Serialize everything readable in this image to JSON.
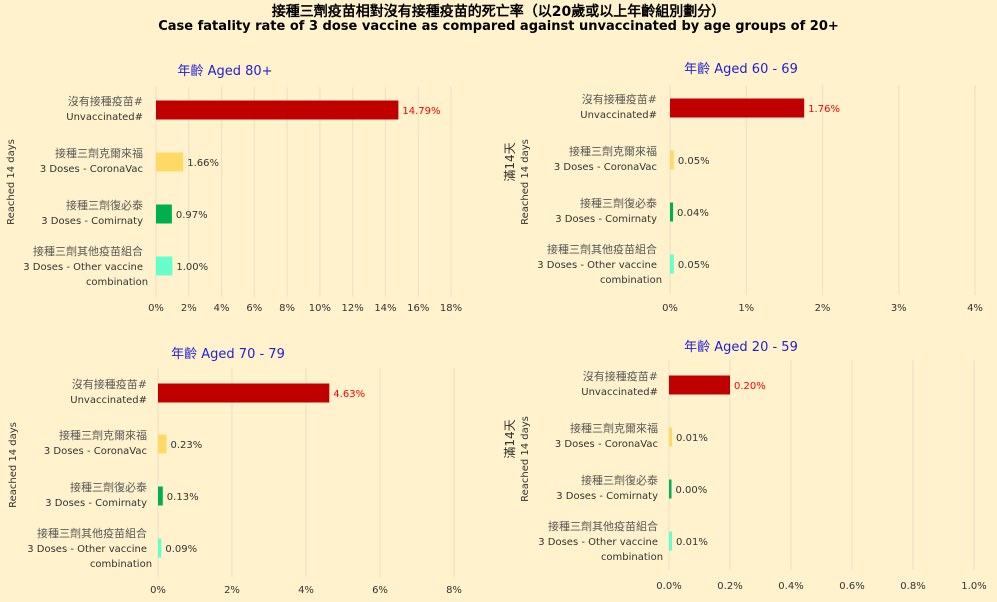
{
  "title": "接種三劑疫苗相對沒有接種疫苗的死亡率（以20歲或以上年齡組別劃分）",
  "subtitle": "Case fatality rate of 3 dose vaccine as compared against unvaccinated by age groups of 20+",
  "colors": {
    "background": "#fff2cc",
    "gridline": "#ede3c6",
    "panel_title": "#1f1fd6",
    "unvaccinated": "#c00000",
    "coronavac": "#ffd966",
    "comirnaty": "#00b050",
    "other": "#66ffcc",
    "label_text": "#333333",
    "unvaccinated_label": "#ff0000"
  },
  "chart_data": [
    {
      "type": "bar",
      "orientation": "horizontal",
      "title": "年齡 Aged 80+",
      "ylabel": "Reached 14 days",
      "categories": [
        {
          "zh": "沒有接種疫苗#",
          "en": "Unvaccinated#"
        },
        {
          "zh": "接種三劑克爾來福",
          "en": "3 Doses - CoronaVac"
        },
        {
          "zh": "接種三劑復必泰",
          "en": "3 Doses - Comirnaty"
        },
        {
          "zh": "接種三劑其他疫苗組合",
          "en": "3 Doses - Other vaccine",
          "en2": "combination"
        }
      ],
      "values": [
        14.79,
        1.66,
        0.97,
        1.0
      ],
      "value_labels": [
        "14.79%",
        "1.66%",
        "0.97%",
        "1.00%"
      ],
      "xlim": [
        0,
        18
      ],
      "xticks": [
        "0%",
        "2%",
        "4%",
        "6%",
        "8%",
        "10%",
        "12%",
        "14%",
        "16%",
        "18%"
      ],
      "grid": true
    },
    {
      "type": "bar",
      "orientation": "horizontal",
      "title": "年齡 Aged 60 - 69",
      "ylabel": "Reached 14 days",
      "ylabel_zh": "滿14天",
      "categories": [
        {
          "zh": "沒有接種疫苗#",
          "en": "Unvaccinated#"
        },
        {
          "zh": "接種三劑克爾來福",
          "en": "3 Doses - CoronaVac"
        },
        {
          "zh": "接種三劑復必泰",
          "en": "3 Doses - Comirnaty"
        },
        {
          "zh": "接種三劑其他疫苗組合",
          "en": "3 Doses - Other vaccine",
          "en2": "combination"
        }
      ],
      "values": [
        1.76,
        0.05,
        0.04,
        0.05
      ],
      "value_labels": [
        "1.76%",
        "0.05%",
        "0.04%",
        "0.05%"
      ],
      "xlim": [
        0,
        4
      ],
      "xticks": [
        "0%",
        "1%",
        "2%",
        "3%",
        "4%"
      ],
      "grid": true
    },
    {
      "type": "bar",
      "orientation": "horizontal",
      "title": "年齡 Aged 70 - 79",
      "ylabel": "Reached 14 days",
      "categories": [
        {
          "zh": "沒有接種疫苗#",
          "en": "Unvaccinated#"
        },
        {
          "zh": "接種三劑克爾來福",
          "en": "3 Doses - CoronaVac"
        },
        {
          "zh": "接種三劑復必泰",
          "en": "3 Doses - Comirnaty"
        },
        {
          "zh": "接種三劑其他疫苗組合",
          "en": "3 Doses - Other vaccine",
          "en2": "combination"
        }
      ],
      "values": [
        4.63,
        0.23,
        0.13,
        0.09
      ],
      "value_labels": [
        "4.63%",
        "0.23%",
        "0.13%",
        "0.09%"
      ],
      "xlim": [
        0,
        8
      ],
      "xticks": [
        "0%",
        "2%",
        "4%",
        "6%",
        "8%"
      ],
      "grid": true
    },
    {
      "type": "bar",
      "orientation": "horizontal",
      "title": "年齡 Aged 20 - 59",
      "ylabel": "Reached 14 days",
      "ylabel_zh": "滿14天",
      "categories": [
        {
          "zh": "沒有接種疫苗#",
          "en": "Unvaccinated#"
        },
        {
          "zh": "接種三劑克爾來福",
          "en": "3 Doses - CoronaVac"
        },
        {
          "zh": "接種三劑復必泰",
          "en": "3 Doses - Comirnaty"
        },
        {
          "zh": "接種三劑其他疫苗組合",
          "en": "3 Doses - Other vaccine",
          "en2": "combination"
        }
      ],
      "values": [
        0.2,
        0.01,
        0.0,
        0.01
      ],
      "value_labels": [
        "0.20%",
        "0.01%",
        "0.00%",
        "0.01%"
      ],
      "xlim": [
        0,
        1.0
      ],
      "xticks": [
        "0.0%",
        "0.2%",
        "0.4%",
        "0.6%",
        "0.8%",
        "1.0%"
      ],
      "grid": true
    }
  ]
}
